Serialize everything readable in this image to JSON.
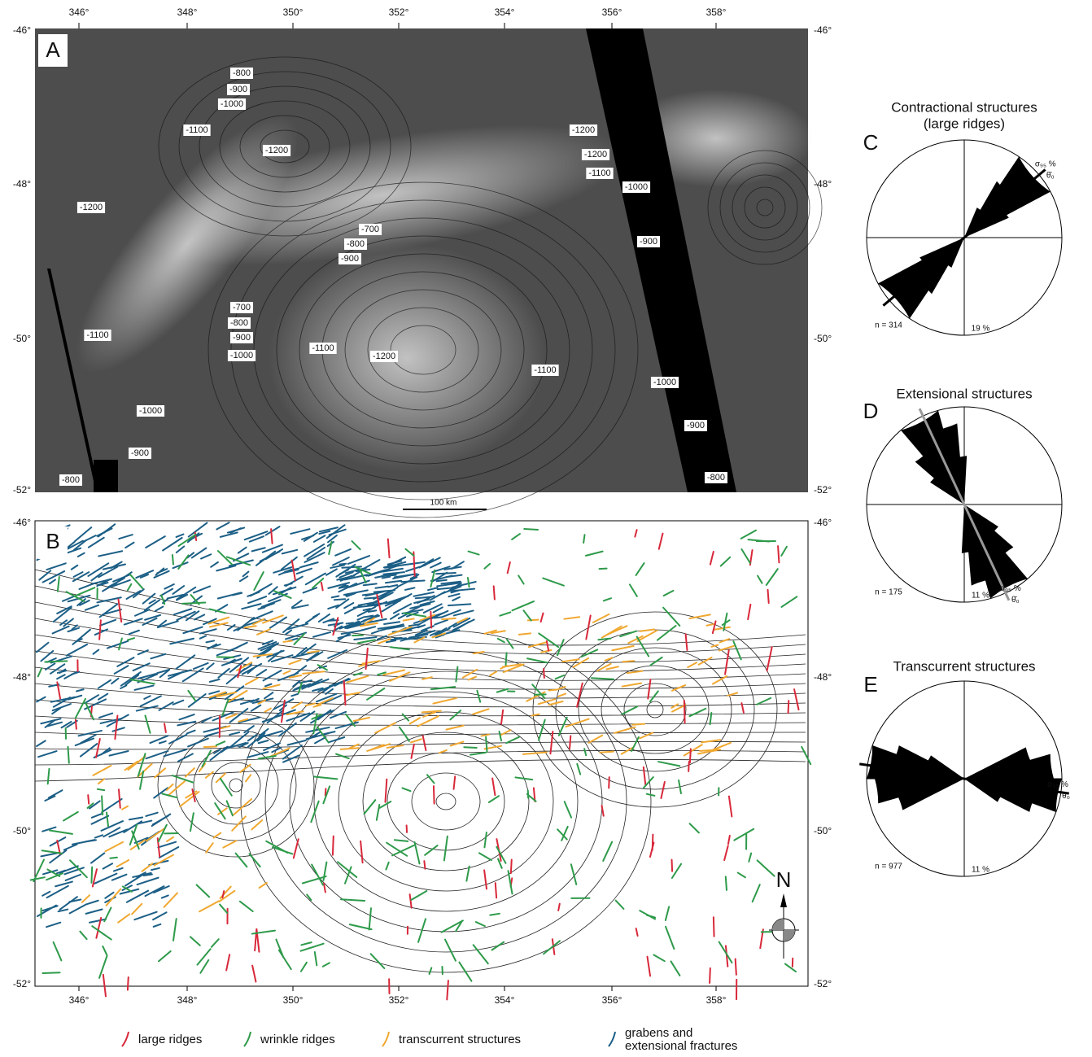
{
  "panel_a": {
    "letter": "A",
    "top_labels": [
      "346°",
      "348°",
      "350°",
      "352°",
      "354°",
      "356°",
      "358°"
    ],
    "left_labels": [
      "-46°",
      "-48°",
      "-50°",
      "-52°"
    ],
    "right_labels": [
      "-46°",
      "-48°",
      "-50°",
      "-52°"
    ],
    "contour_labels": [
      "-800",
      "-900",
      "-1000",
      "-1100",
      "-1200",
      "-1200",
      "-700",
      "-800",
      "-900",
      "-700",
      "-800",
      "-900",
      "-1000",
      "-1100",
      "-1100",
      "-1200",
      "-1100",
      "-1200",
      "-1200",
      "-1100",
      "-1000",
      "-900",
      "-1000",
      "-900",
      "-800",
      "-1000",
      "-900",
      "-800"
    ]
  },
  "scale_bar": "100 km",
  "panel_b": {
    "letter": "B",
    "left_labels": [
      "-46°",
      "-48°",
      "-50°",
      "-52°"
    ],
    "right_labels": [
      "-46°",
      "-48°",
      "-50°",
      "-52°"
    ],
    "bottom_labels": [
      "346°",
      "348°",
      "350°",
      "352°",
      "354°",
      "356°",
      "358°"
    ],
    "north": "N"
  },
  "rose_c": {
    "letter": "C",
    "title": [
      "Contractional structures",
      "(large ridges)"
    ],
    "n": "n = 314",
    "percent": "19 %",
    "sigma": "σ₉₅ %",
    "theta": "θ̄₀"
  },
  "rose_d": {
    "letter": "D",
    "title": [
      "Extensional structures"
    ],
    "n": "n = 175",
    "percent": "11 %",
    "sigma": "σ₉₅ %",
    "theta": "θ̄₀"
  },
  "rose_e": {
    "letter": "E",
    "title": [
      "Transcurrent structures"
    ],
    "n": "n = 977",
    "percent": "11 %",
    "sigma": "σ₉₅ %",
    "theta": "θ̄₀"
  },
  "legend": [
    {
      "label": [
        "large ridges"
      ],
      "color": "#d8283a"
    },
    {
      "label": [
        "wrinkle ridges"
      ],
      "color": "#2e9a4a"
    },
    {
      "label": [
        "transcurrent structures"
      ],
      "color": "#f0a830"
    },
    {
      "label": [
        "grabens and",
        "extensional fractures"
      ],
      "color": "#1c5f86"
    }
  ]
}
